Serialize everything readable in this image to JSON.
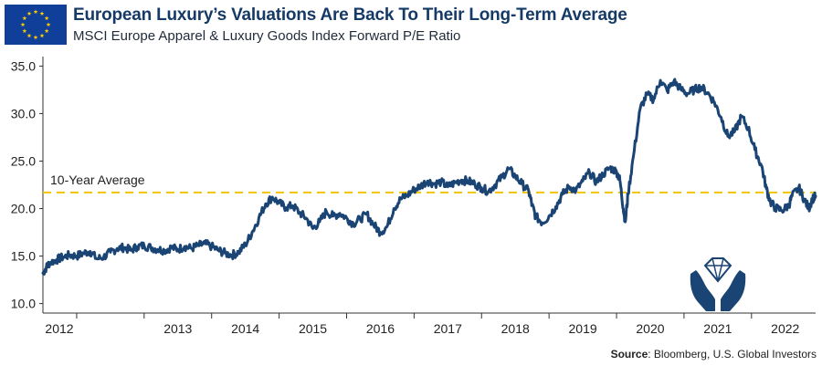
{
  "header": {
    "title": "European Luxury’s Valuations Are Back To Their Long-Term Average",
    "subtitle": "MSCI Europe Apparel & Luxury Goods Index Forward P/E Ratio"
  },
  "icons": {
    "flag": "eu-flag-icon",
    "decoration": "diamond-hands-icon"
  },
  "colors": {
    "line": "#1a4474",
    "average": "#f2c400",
    "title": "#163a66",
    "flag": "#103f9a",
    "star": "#ffcc00"
  },
  "source": {
    "label": "Source",
    "text": ": Bloomberg, U.S. Global Investors"
  },
  "chart_data": {
    "type": "line",
    "x_tick_labels": [
      "2012",
      "2013",
      "2014",
      "2015",
      "2016",
      "2017",
      "2018",
      "2019",
      "2020",
      "2021",
      "2022"
    ],
    "y_tick_labels": [
      "35.0",
      "30.0",
      "25.0",
      "20.0",
      "15.0",
      "10.0"
    ],
    "ylim": [
      9,
      36
    ],
    "xlim": [
      2011.5,
      2022.95
    ],
    "grid": false,
    "reference_line": {
      "label": "10-Year Average",
      "value": 21.7
    },
    "series": [
      {
        "values": [
          [
            2011.5,
            13.2
          ],
          [
            2011.55,
            13.8
          ],
          [
            2011.6,
            14.3
          ],
          [
            2011.7,
            14.6
          ],
          [
            2011.8,
            14.9
          ],
          [
            2011.9,
            15.1
          ],
          [
            2012.0,
            15.0
          ],
          [
            2012.1,
            15.3
          ],
          [
            2012.2,
            15.5
          ],
          [
            2012.3,
            14.7
          ],
          [
            2012.4,
            14.9
          ],
          [
            2012.5,
            15.4
          ],
          [
            2012.6,
            15.8
          ],
          [
            2012.7,
            15.9
          ],
          [
            2012.8,
            15.6
          ],
          [
            2012.9,
            16.0
          ],
          [
            2013.0,
            16.1
          ],
          [
            2013.1,
            15.9
          ],
          [
            2013.2,
            15.7
          ],
          [
            2013.3,
            15.6
          ],
          [
            2013.4,
            15.9
          ],
          [
            2013.5,
            15.7
          ],
          [
            2013.6,
            16.0
          ],
          [
            2013.7,
            15.8
          ],
          [
            2013.8,
            16.1
          ],
          [
            2013.9,
            16.3
          ],
          [
            2014.0,
            16.0
          ],
          [
            2014.1,
            15.6
          ],
          [
            2014.2,
            15.3
          ],
          [
            2014.3,
            15.1
          ],
          [
            2014.4,
            15.4
          ],
          [
            2014.5,
            16.2
          ],
          [
            2014.6,
            17.5
          ],
          [
            2014.7,
            19.0
          ],
          [
            2014.8,
            20.5
          ],
          [
            2014.9,
            21.2
          ],
          [
            2015.0,
            20.6
          ],
          [
            2015.1,
            20.1
          ],
          [
            2015.2,
            20.3
          ],
          [
            2015.3,
            19.6
          ],
          [
            2015.4,
            19.0
          ],
          [
            2015.5,
            17.9
          ],
          [
            2015.6,
            18.6
          ],
          [
            2015.7,
            19.7
          ],
          [
            2015.8,
            19.2
          ],
          [
            2015.9,
            19.5
          ],
          [
            2016.0,
            19.0
          ],
          [
            2016.1,
            18.4
          ],
          [
            2016.2,
            18.9
          ],
          [
            2016.3,
            19.4
          ],
          [
            2016.4,
            18.3
          ],
          [
            2016.5,
            17.5
          ],
          [
            2016.6,
            18.1
          ],
          [
            2016.7,
            20.0
          ],
          [
            2016.8,
            21.0
          ],
          [
            2016.9,
            21.4
          ],
          [
            2017.0,
            22.0
          ],
          [
            2017.1,
            22.4
          ],
          [
            2017.2,
            22.9
          ],
          [
            2017.3,
            22.6
          ],
          [
            2017.4,
            22.8
          ],
          [
            2017.5,
            22.3
          ],
          [
            2017.6,
            22.7
          ],
          [
            2017.7,
            23.0
          ],
          [
            2017.8,
            22.9
          ],
          [
            2017.9,
            22.6
          ],
          [
            2018.0,
            22.2
          ],
          [
            2018.1,
            21.8
          ],
          [
            2018.2,
            22.5
          ],
          [
            2018.3,
            23.3
          ],
          [
            2018.4,
            24.2
          ],
          [
            2018.5,
            23.4
          ],
          [
            2018.6,
            22.6
          ],
          [
            2018.7,
            21.8
          ],
          [
            2018.75,
            20.3
          ],
          [
            2018.8,
            19.2
          ],
          [
            2018.9,
            18.5
          ],
          [
            2019.0,
            19.2
          ],
          [
            2019.1,
            20.2
          ],
          [
            2019.2,
            21.5
          ],
          [
            2019.3,
            22.3
          ],
          [
            2019.4,
            21.9
          ],
          [
            2019.5,
            22.9
          ],
          [
            2019.6,
            23.8
          ],
          [
            2019.7,
            22.8
          ],
          [
            2019.8,
            23.6
          ],
          [
            2019.9,
            24.3
          ],
          [
            2020.0,
            23.9
          ],
          [
            2020.05,
            23.0
          ],
          [
            2020.1,
            20.0
          ],
          [
            2020.13,
            18.6
          ],
          [
            2020.17,
            21.5
          ],
          [
            2020.25,
            25.5
          ],
          [
            2020.35,
            30.5
          ],
          [
            2020.45,
            32.0
          ],
          [
            2020.55,
            31.5
          ],
          [
            2020.65,
            33.5
          ],
          [
            2020.75,
            32.4
          ],
          [
            2020.85,
            33.4
          ],
          [
            2020.95,
            32.6
          ],
          [
            2021.05,
            32.1
          ],
          [
            2021.15,
            32.5
          ],
          [
            2021.25,
            32.8
          ],
          [
            2021.35,
            32.2
          ],
          [
            2021.45,
            31.2
          ],
          [
            2021.55,
            29.6
          ],
          [
            2021.65,
            27.6
          ],
          [
            2021.75,
            28.1
          ],
          [
            2021.85,
            29.7
          ],
          [
            2021.95,
            28.5
          ],
          [
            2022.05,
            26.2
          ],
          [
            2022.15,
            24.5
          ],
          [
            2022.22,
            22.1
          ],
          [
            2022.28,
            20.7
          ],
          [
            2022.35,
            20.1
          ],
          [
            2022.45,
            19.8
          ],
          [
            2022.55,
            20.3
          ],
          [
            2022.6,
            21.3
          ],
          [
            2022.7,
            22.2
          ],
          [
            2022.78,
            21.0
          ],
          [
            2022.85,
            20.0
          ],
          [
            2022.9,
            21.0
          ],
          [
            2022.95,
            21.3
          ]
        ]
      }
    ]
  }
}
